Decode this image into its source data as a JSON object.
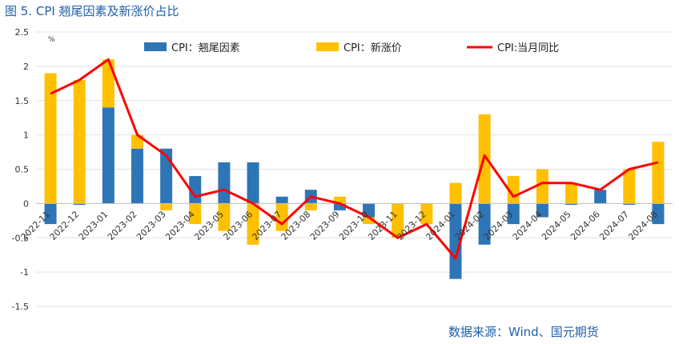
{
  "figure_title": "图 5.  CPI 翘尾因素及新涨价占比",
  "source": "数据来源：Wind、国元期货",
  "unit_mark": "%",
  "colors": {
    "carryover": "#2e75b6",
    "new_price": "#ffc000",
    "yoy": "#ff0000",
    "title": "#1f5fa8"
  },
  "chart_data": {
    "type": "bar",
    "title": "",
    "xlabel": "",
    "ylabel": "",
    "ylim": [
      -1.5,
      2.5
    ],
    "yticks": [
      "2.5",
      "2",
      "1.5",
      "1",
      "0.5",
      "0",
      "-0.5",
      "-1",
      "-1.5"
    ],
    "ytick_values": [
      2.5,
      2,
      1.5,
      1,
      0.5,
      0,
      -0.5,
      -1,
      -1.5
    ],
    "grid": true,
    "legend_position": "top",
    "stacked": true,
    "categories": [
      "2022-11",
      "2022-12",
      "2023-01",
      "2023-02",
      "2023-03",
      "2023-04",
      "2023-05",
      "2023-06",
      "2023-07",
      "2023-08",
      "2023-09",
      "2023-10",
      "2023-11",
      "2023-12",
      "2024-01",
      "2024-02",
      "2024-03",
      "2024-04",
      "2024-05",
      "2024-06",
      "2024-07",
      "2024-08"
    ],
    "series": [
      {
        "name": "CPI：翘尾因素",
        "type": "bar",
        "values": [
          -0.3,
          -0.02,
          1.4,
          0.8,
          0.8,
          0.4,
          0.6,
          0.6,
          0.1,
          0.2,
          -0.1,
          -0.2,
          0.0,
          0.0,
          -1.1,
          -0.6,
          -0.3,
          -0.2,
          -0.02,
          0.2,
          -0.02,
          -0.3
        ]
      },
      {
        "name": "CPI：新涨价",
        "type": "bar",
        "values": [
          1.9,
          1.8,
          0.7,
          0.2,
          -0.1,
          -0.3,
          -0.4,
          -0.6,
          -0.4,
          -0.1,
          0.1,
          -0.1,
          -0.5,
          -0.3,
          0.3,
          1.3,
          0.4,
          0.5,
          0.3,
          0.0,
          0.5,
          0.9
        ]
      },
      {
        "name": "CPI:当月同比",
        "type": "line",
        "values": [
          1.6,
          1.8,
          2.1,
          1.0,
          0.7,
          0.1,
          0.2,
          0.0,
          -0.3,
          0.1,
          0.0,
          -0.2,
          -0.5,
          -0.3,
          -0.8,
          0.7,
          0.1,
          0.3,
          0.3,
          0.2,
          0.5,
          0.6
        ]
      }
    ]
  }
}
